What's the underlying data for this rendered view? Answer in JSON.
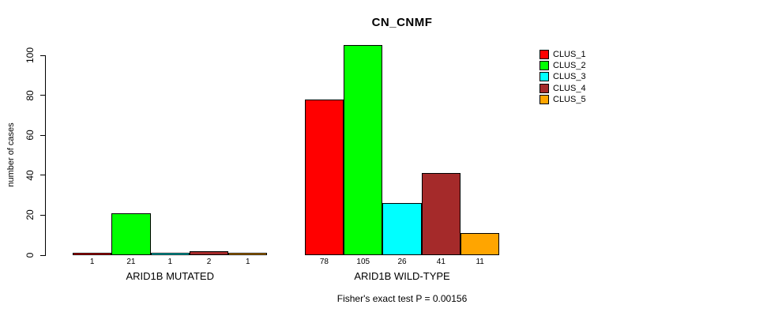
{
  "title": "CN_CNMF",
  "footer": "Fisher's exact test P = 0.00156",
  "y_axis": {
    "label": "number of cases",
    "ticks": [
      "0",
      "20",
      "40",
      "60",
      "80",
      "100"
    ]
  },
  "legend": {
    "items": [
      {
        "label": "CLUS_1",
        "color": "#FF0000"
      },
      {
        "label": "CLUS_2",
        "color": "#00FF00"
      },
      {
        "label": "CLUS_3",
        "color": "#00FFFF"
      },
      {
        "label": "CLUS_4",
        "color": "#A52A2A"
      },
      {
        "label": "CLUS_5",
        "color": "#FFA500"
      }
    ]
  },
  "chart_data": {
    "type": "bar",
    "title": "CN_CNMF",
    "xlabel": "",
    "ylabel": "number of cases",
    "ylim": [
      0,
      105
    ],
    "yticks": [
      0,
      20,
      40,
      60,
      80,
      100
    ],
    "grid": false,
    "legend_position": "right",
    "categories": [
      "ARID1B MUTATED",
      "ARID1B WILD-TYPE"
    ],
    "series": [
      {
        "name": "CLUS_1",
        "color": "#FF0000",
        "values": [
          1,
          78
        ]
      },
      {
        "name": "CLUS_2",
        "color": "#00FF00",
        "values": [
          21,
          105
        ]
      },
      {
        "name": "CLUS_3",
        "color": "#00FFFF",
        "values": [
          1,
          26
        ]
      },
      {
        "name": "CLUS_4",
        "color": "#A52A2A",
        "values": [
          2,
          41
        ]
      },
      {
        "name": "CLUS_5",
        "color": "#FFA500",
        "values": [
          1,
          11
        ]
      }
    ],
    "bar_value_labels": [
      [
        1,
        21,
        1,
        2,
        1
      ],
      [
        78,
        105,
        26,
        41,
        11
      ]
    ],
    "annotation": "Fisher's exact test P = 0.00156"
  }
}
